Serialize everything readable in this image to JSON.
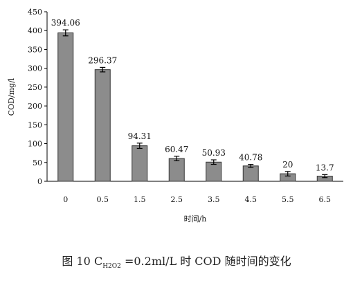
{
  "chart_data": {
    "type": "bar",
    "categories": [
      "0",
      "0.5",
      "1.5",
      "2.5",
      "3.5",
      "4.5",
      "5.5",
      "6.5"
    ],
    "values": [
      394.06,
      296.37,
      94.31,
      60.47,
      50.93,
      40.78,
      20,
      13.7
    ],
    "data_labels": [
      "394.06",
      "296.37",
      "94.31",
      "60.47",
      "50.93",
      "40.78",
      "20",
      "13.7"
    ],
    "error": [
      8,
      6,
      7,
      6,
      6,
      4,
      6,
      4
    ],
    "xlabel": "时间/h",
    "ylabel": "COD/mg/l",
    "ylim": [
      0,
      450
    ],
    "yticks": [
      "0",
      "50",
      "100",
      "150",
      "200",
      "250",
      "300",
      "350",
      "400",
      "450"
    ],
    "grid": false,
    "bar_color": "#8c8c8c"
  },
  "caption": {
    "prefix": "图 10 C",
    "subscript": "H2O2",
    "suffix": " =0.2ml/L 时 COD 随时间的变化"
  }
}
